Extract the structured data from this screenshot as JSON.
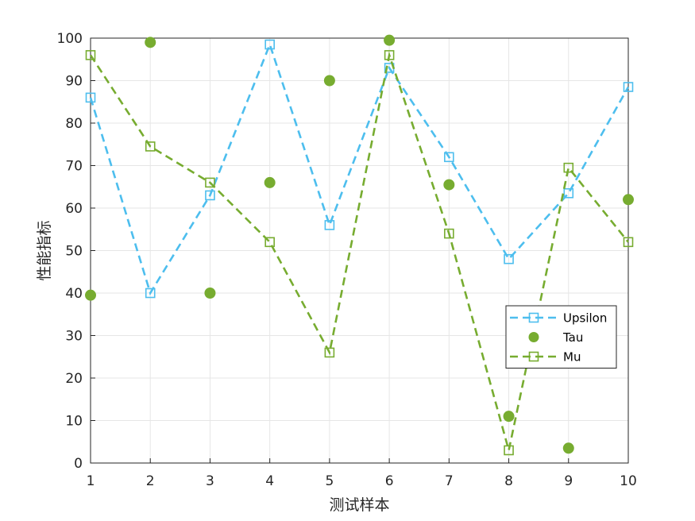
{
  "chart_data": {
    "type": "line",
    "title": "",
    "xlabel": "测试样本",
    "ylabel": "性能指标",
    "x": [
      1,
      2,
      3,
      4,
      5,
      6,
      7,
      8,
      9,
      10
    ],
    "xlim": [
      1,
      10
    ],
    "ylim": [
      0,
      100
    ],
    "xticks": [
      "1",
      "2",
      "3",
      "4",
      "5",
      "6",
      "7",
      "8",
      "9",
      "10"
    ],
    "yticks": [
      "0",
      "10",
      "20",
      "30",
      "40",
      "50",
      "60",
      "70",
      "80",
      "90",
      "100"
    ],
    "grid": true,
    "legend_position": "lower-right",
    "series": [
      {
        "name": "Upsilon",
        "style": "dashed-line-square-marker",
        "color": "#4DBEEE",
        "values": [
          86,
          40,
          63,
          98.5,
          56,
          93,
          72,
          48,
          63.5,
          88.5
        ]
      },
      {
        "name": "Tau",
        "style": "filled-circle-marker",
        "color": "#77AC30",
        "values": [
          39.5,
          99,
          40,
          66,
          90,
          99.5,
          65.5,
          11,
          3.5,
          62
        ]
      },
      {
        "name": "Mu",
        "style": "dashed-line-square-marker",
        "color": "#77AC30",
        "values": [
          96,
          74.5,
          66,
          52,
          26,
          96,
          54,
          3,
          69.5,
          52
        ]
      }
    ]
  }
}
